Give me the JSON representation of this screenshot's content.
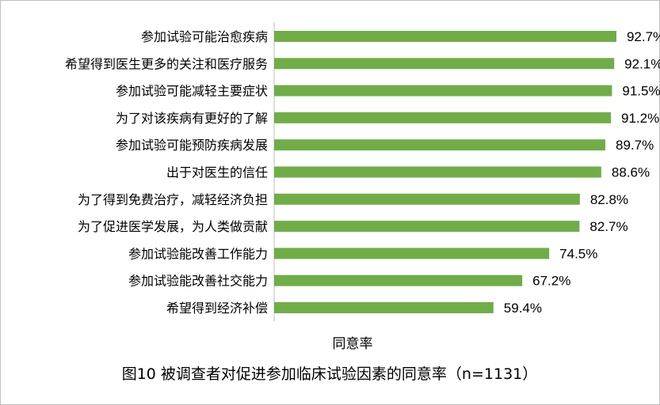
{
  "chart_data": {
    "type": "bar",
    "orientation": "horizontal",
    "title": "图10 被调查者对促进参加临床试验因素的同意率（n=1131）",
    "xlabel": "同意率",
    "ylabel": "",
    "xlim": [
      0,
      100
    ],
    "grid": false,
    "legend": "none",
    "bar_color": "#70ad47",
    "categories": [
      "参加试验可能治愈疾病",
      "希望得到医生更多的关注和医疗服务",
      "参加试验可能减轻主要症状",
      "为了对该疾病有更好的了解",
      "参加试验可能预防疾病发展",
      "出于对医生的信任",
      "为了得到免费治疗，减轻经济负担",
      "为了促进医学发展，为人类做贡献",
      "参加试验能改善工作能力",
      "参加试验能改善社交能力",
      "希望得到经济补偿"
    ],
    "values": [
      92.7,
      92.1,
      91.5,
      91.2,
      89.7,
      88.6,
      82.8,
      82.7,
      74.5,
      67.2,
      59.4
    ],
    "value_labels": [
      "92.7%",
      "92.1%",
      "91.5%",
      "91.2%",
      "89.7%",
      "88.6%",
      "82.8%",
      "82.7%",
      "74.5%",
      "67.2%",
      "59.4%"
    ]
  }
}
